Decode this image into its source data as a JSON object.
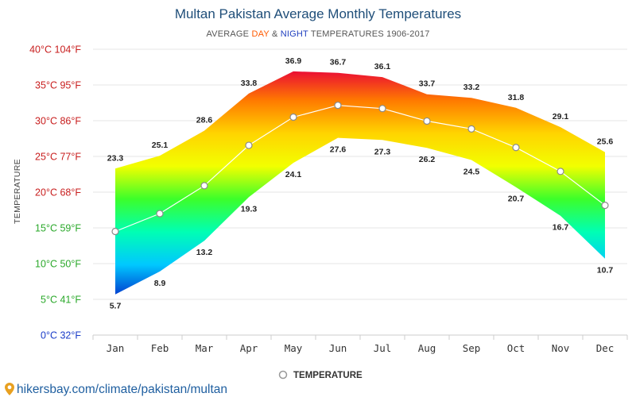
{
  "chart_data": {
    "type": "area",
    "title": "Multan Pakistan Average Monthly Temperatures",
    "subtitle": {
      "prefix": "AVERAGE ",
      "day_word": "DAY",
      "middle": " & ",
      "night_word": "NIGHT",
      "suffix": " TEMPERATURES 1906-2017"
    },
    "ylabel": "TEMPERATURE",
    "categories": [
      "Jan",
      "Feb",
      "Mar",
      "Apr",
      "May",
      "Jun",
      "Jul",
      "Aug",
      "Sep",
      "Oct",
      "Nov",
      "Dec"
    ],
    "series": [
      {
        "name": "DAY",
        "values": [
          23.3,
          25.1,
          28.6,
          33.8,
          36.9,
          36.7,
          36.1,
          33.7,
          33.2,
          31.8,
          29.1,
          25.6
        ],
        "labels": [
          "23.3",
          "25.1",
          "28.6",
          "33.8",
          "36.9",
          "36.7",
          "36.1",
          "33.7",
          "33.2",
          "31.8",
          "29.1",
          "25.6"
        ]
      },
      {
        "name": "NIGHT",
        "values": [
          5.7,
          8.9,
          13.2,
          19.3,
          24.1,
          27.6,
          27.3,
          26.2,
          24.5,
          20.7,
          16.7,
          10.7
        ],
        "labels": [
          "5.7",
          "8.9",
          "13.2",
          "19.3",
          "24.1",
          "27.6",
          "27.3",
          "26.2",
          "24.5",
          "20.7",
          "16.7",
          "10.7"
        ]
      },
      {
        "name": "TEMPERATURE",
        "values": [
          14.5,
          17.0,
          20.9,
          26.55,
          30.5,
          32.15,
          31.7,
          29.95,
          28.85,
          26.25,
          22.9,
          18.15
        ]
      }
    ],
    "yticks": [
      {
        "value": 0,
        "label": "0°C 32°F",
        "color": "#1a3cc8"
      },
      {
        "value": 5,
        "label": "5°C 41°F",
        "color": "#2aa82a"
      },
      {
        "value": 10,
        "label": "10°C 50°F",
        "color": "#2aa82a"
      },
      {
        "value": 15,
        "label": "15°C 59°F",
        "color": "#2aa82a"
      },
      {
        "value": 20,
        "label": "20°C 68°F",
        "color": "#c81e1e"
      },
      {
        "value": 25,
        "label": "25°C 77°F",
        "color": "#c81e1e"
      },
      {
        "value": 30,
        "label": "30°C 86°F",
        "color": "#c81e1e"
      },
      {
        "value": 35,
        "label": "35°C 95°F",
        "color": "#c81e1e"
      },
      {
        "value": 40,
        "label": "40°C 104°F",
        "color": "#c81e1e"
      }
    ],
    "ylim": [
      0,
      40
    ],
    "grid": true,
    "legend": {
      "label": "TEMPERATURE",
      "position": "bottom"
    },
    "colors": {
      "day_word": "#ff5a00",
      "night_word": "#1f3fbf",
      "gradient": [
        "#e8003a",
        "#ff7a00",
        "#ffd400",
        "#f2ff00",
        "#3cff2a",
        "#00ffb4",
        "#00c8ff",
        "#0033cc"
      ]
    }
  },
  "footer": {
    "watermark": "hikersbay.com/climate/pakistan/multan",
    "pin_icon": "map-pin-icon"
  }
}
